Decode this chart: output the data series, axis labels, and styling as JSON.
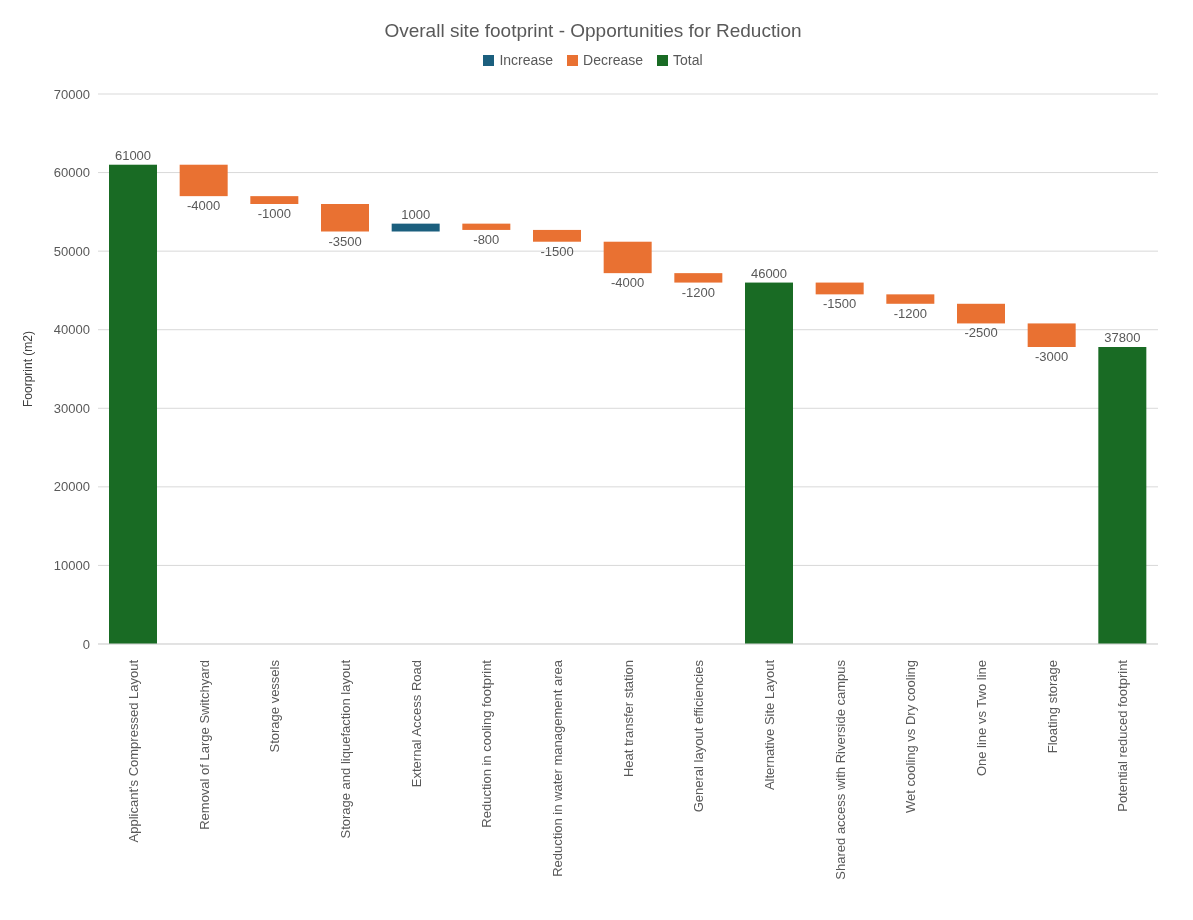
{
  "chart_data": {
    "type": "bar",
    "title": "Overall site footprint - Opportunities for Reduction",
    "ylabel": "Foorprint (m2)",
    "categories": [
      "Applicant's Compressed Layout",
      "Removal of Large Switchyard",
      "Storage vessels",
      "Storage and liquefaction layout",
      "External Access Road",
      "Reduction in cooling footprint",
      "Reduction in water management area",
      "Heat transfer station",
      "General layout efficiencies",
      "Alternative Site Layout",
      "Shared access with Riverside campus",
      "Wet cooling vs Dry cooling",
      "One line vs Two line",
      "Floating storage",
      "Potential reduced footprint"
    ],
    "series": [
      {
        "name": "Increase",
        "color": "#1b5f7e",
        "values": [
          null,
          null,
          null,
          null,
          1000,
          null,
          null,
          null,
          null,
          null,
          null,
          null,
          null,
          null,
          null
        ],
        "base": [
          null,
          null,
          null,
          null,
          52500,
          null,
          null,
          null,
          null,
          null,
          null,
          null,
          null,
          null,
          null
        ]
      },
      {
        "name": "Decrease",
        "color": "#e97132",
        "values": [
          null,
          -4000,
          -1000,
          -3500,
          null,
          -800,
          -1500,
          -4000,
          -1200,
          null,
          -1500,
          -1200,
          -2500,
          -3000,
          null
        ],
        "base": [
          null,
          61000,
          57000,
          56000,
          null,
          53500,
          52700,
          51200,
          47200,
          null,
          46000,
          44500,
          43300,
          40800,
          null
        ]
      },
      {
        "name": "Total",
        "color": "#196b24",
        "values": [
          61000,
          null,
          null,
          null,
          null,
          null,
          null,
          null,
          null,
          46000,
          null,
          null,
          null,
          null,
          37800
        ],
        "base": [
          0,
          null,
          null,
          null,
          null,
          null,
          null,
          null,
          null,
          0,
          null,
          null,
          null,
          null,
          0
        ]
      }
    ],
    "ylim": [
      0,
      70000
    ],
    "yticks": [
      0,
      10000,
      20000,
      30000,
      40000,
      50000,
      60000,
      70000
    ],
    "grid": "y",
    "legend": "top",
    "data_labels": true
  }
}
